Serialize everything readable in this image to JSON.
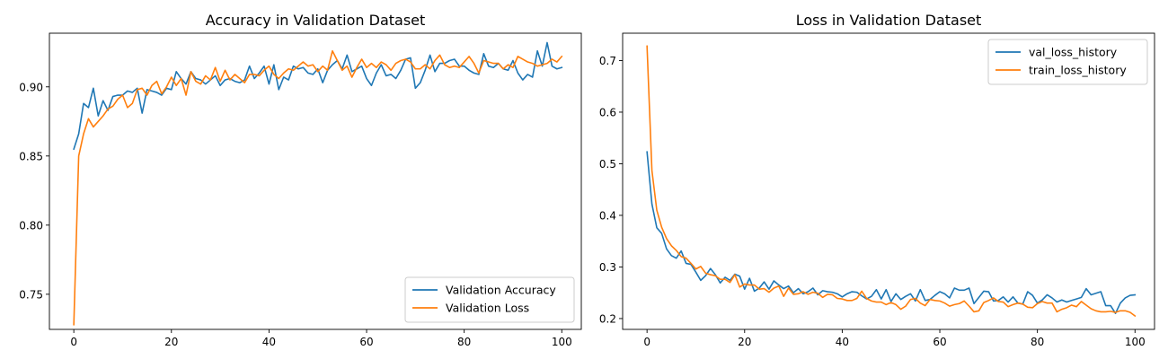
{
  "chart_data": [
    {
      "type": "line",
      "title": "Accuracy in Validation Dataset",
      "xlabel": "",
      "ylabel": "",
      "xlim": [
        -5,
        104
      ],
      "ylim": [
        0.7246,
        0.9388
      ],
      "xticks": [
        0,
        20,
        40,
        60,
        80,
        100
      ],
      "xtick_labels": [
        "0",
        "20",
        "40",
        "60",
        "80",
        "100"
      ],
      "yticks": [
        0.75,
        0.8,
        0.85,
        0.9
      ],
      "ytick_labels": [
        "0.75",
        "0.80",
        "0.85",
        "0.90"
      ],
      "grid": false,
      "legend_position": "lower-right",
      "series": [
        {
          "name": "Validation Accuracy",
          "color": "#1f77b4",
          "x_start": 0,
          "values": [
            0.855,
            0.866,
            0.888,
            0.885,
            0.899,
            0.879,
            0.89,
            0.883,
            0.893,
            0.894,
            0.894,
            0.897,
            0.896,
            0.899,
            0.881,
            0.898,
            0.897,
            0.896,
            0.894,
            0.899,
            0.898,
            0.911,
            0.906,
            0.902,
            0.911,
            0.906,
            0.905,
            0.902,
            0.905,
            0.908,
            0.901,
            0.905,
            0.906,
            0.904,
            0.903,
            0.905,
            0.915,
            0.906,
            0.91,
            0.915,
            0.902,
            0.916,
            0.898,
            0.907,
            0.905,
            0.915,
            0.913,
            0.914,
            0.91,
            0.909,
            0.913,
            0.903,
            0.912,
            0.916,
            0.919,
            0.913,
            0.923,
            0.911,
            0.913,
            0.915,
            0.906,
            0.901,
            0.91,
            0.916,
            0.908,
            0.909,
            0.906,
            0.912,
            0.92,
            0.921,
            0.899,
            0.903,
            0.912,
            0.923,
            0.911,
            0.917,
            0.917,
            0.919,
            0.92,
            0.915,
            0.915,
            0.912,
            0.91,
            0.909,
            0.924,
            0.915,
            0.914,
            0.917,
            0.913,
            0.912,
            0.919,
            0.91,
            0.905,
            0.909,
            0.907,
            0.926,
            0.915,
            0.932,
            0.915,
            0.913,
            0.914
          ]
        },
        {
          "name": "Validation Loss",
          "color": "#ff7f0e",
          "x_start": 0,
          "values": [
            0.728,
            0.85,
            0.866,
            0.877,
            0.871,
            0.875,
            0.879,
            0.884,
            0.886,
            0.891,
            0.894,
            0.885,
            0.888,
            0.898,
            0.899,
            0.894,
            0.901,
            0.904,
            0.895,
            0.9,
            0.907,
            0.901,
            0.906,
            0.894,
            0.911,
            0.904,
            0.902,
            0.908,
            0.905,
            0.914,
            0.904,
            0.912,
            0.905,
            0.909,
            0.906,
            0.903,
            0.909,
            0.909,
            0.908,
            0.912,
            0.915,
            0.909,
            0.906,
            0.91,
            0.913,
            0.912,
            0.915,
            0.918,
            0.915,
            0.916,
            0.911,
            0.915,
            0.912,
            0.926,
            0.919,
            0.912,
            0.915,
            0.907,
            0.914,
            0.92,
            0.914,
            0.917,
            0.914,
            0.918,
            0.916,
            0.912,
            0.917,
            0.919,
            0.92,
            0.918,
            0.913,
            0.913,
            0.916,
            0.913,
            0.919,
            0.923,
            0.916,
            0.914,
            0.915,
            0.914,
            0.918,
            0.922,
            0.917,
            0.91,
            0.919,
            0.918,
            0.917,
            0.917,
            0.913,
            0.916,
            0.914,
            0.922,
            0.92,
            0.918,
            0.917,
            0.915,
            0.916,
            0.917,
            0.92,
            0.918,
            0.922
          ]
        }
      ]
    },
    {
      "type": "line",
      "title": "Loss in Validation Dataset",
      "xlabel": "",
      "ylabel": "",
      "xlim": [
        -5,
        104
      ],
      "ylim": [
        0.179,
        0.753
      ],
      "xticks": [
        0,
        20,
        40,
        60,
        80,
        100
      ],
      "xtick_labels": [
        "0",
        "20",
        "40",
        "60",
        "80",
        "100"
      ],
      "yticks": [
        0.2,
        0.3,
        0.4,
        0.5,
        0.6,
        0.7
      ],
      "ytick_labels": [
        "0.2",
        "0.3",
        "0.4",
        "0.5",
        "0.6",
        "0.7"
      ],
      "grid": false,
      "legend_position": "top-right",
      "series": [
        {
          "name": "val_loss_history",
          "color": "#1f77b4",
          "x_start": 0,
          "values": [
            0.523,
            0.422,
            0.376,
            0.365,
            0.335,
            0.322,
            0.317,
            0.331,
            0.307,
            0.305,
            0.29,
            0.274,
            0.283,
            0.297,
            0.285,
            0.269,
            0.28,
            0.274,
            0.286,
            0.282,
            0.257,
            0.278,
            0.253,
            0.259,
            0.271,
            0.257,
            0.273,
            0.265,
            0.258,
            0.263,
            0.25,
            0.258,
            0.248,
            0.252,
            0.259,
            0.246,
            0.254,
            0.252,
            0.251,
            0.248,
            0.242,
            0.248,
            0.252,
            0.251,
            0.244,
            0.238,
            0.243,
            0.256,
            0.238,
            0.256,
            0.233,
            0.248,
            0.237,
            0.243,
            0.248,
            0.234,
            0.256,
            0.235,
            0.237,
            0.245,
            0.252,
            0.248,
            0.24,
            0.259,
            0.255,
            0.255,
            0.259,
            0.229,
            0.241,
            0.253,
            0.252,
            0.234,
            0.235,
            0.242,
            0.232,
            0.242,
            0.23,
            0.228,
            0.252,
            0.245,
            0.23,
            0.236,
            0.246,
            0.24,
            0.232,
            0.236,
            0.232,
            0.235,
            0.238,
            0.241,
            0.258,
            0.246,
            0.249,
            0.252,
            0.225,
            0.225,
            0.21,
            0.23,
            0.24,
            0.245,
            0.246
          ]
        },
        {
          "name": "train_loss_history",
          "color": "#ff7f0e",
          "x_start": 0,
          "values": [
            0.728,
            0.487,
            0.41,
            0.377,
            0.355,
            0.341,
            0.332,
            0.32,
            0.317,
            0.307,
            0.296,
            0.301,
            0.288,
            0.285,
            0.283,
            0.276,
            0.276,
            0.27,
            0.285,
            0.261,
            0.267,
            0.265,
            0.265,
            0.257,
            0.258,
            0.251,
            0.259,
            0.263,
            0.243,
            0.259,
            0.247,
            0.248,
            0.252,
            0.247,
            0.251,
            0.249,
            0.241,
            0.247,
            0.246,
            0.239,
            0.238,
            0.235,
            0.235,
            0.239,
            0.253,
            0.239,
            0.234,
            0.232,
            0.232,
            0.227,
            0.231,
            0.227,
            0.218,
            0.224,
            0.237,
            0.239,
            0.23,
            0.225,
            0.237,
            0.235,
            0.234,
            0.23,
            0.224,
            0.227,
            0.229,
            0.234,
            0.224,
            0.213,
            0.215,
            0.231,
            0.235,
            0.24,
            0.233,
            0.232,
            0.223,
            0.227,
            0.23,
            0.228,
            0.222,
            0.221,
            0.229,
            0.233,
            0.23,
            0.23,
            0.213,
            0.218,
            0.221,
            0.226,
            0.223,
            0.233,
            0.226,
            0.219,
            0.215,
            0.213,
            0.213,
            0.214,
            0.212,
            0.215,
            0.215,
            0.212,
            0.205
          ]
        }
      ]
    }
  ]
}
